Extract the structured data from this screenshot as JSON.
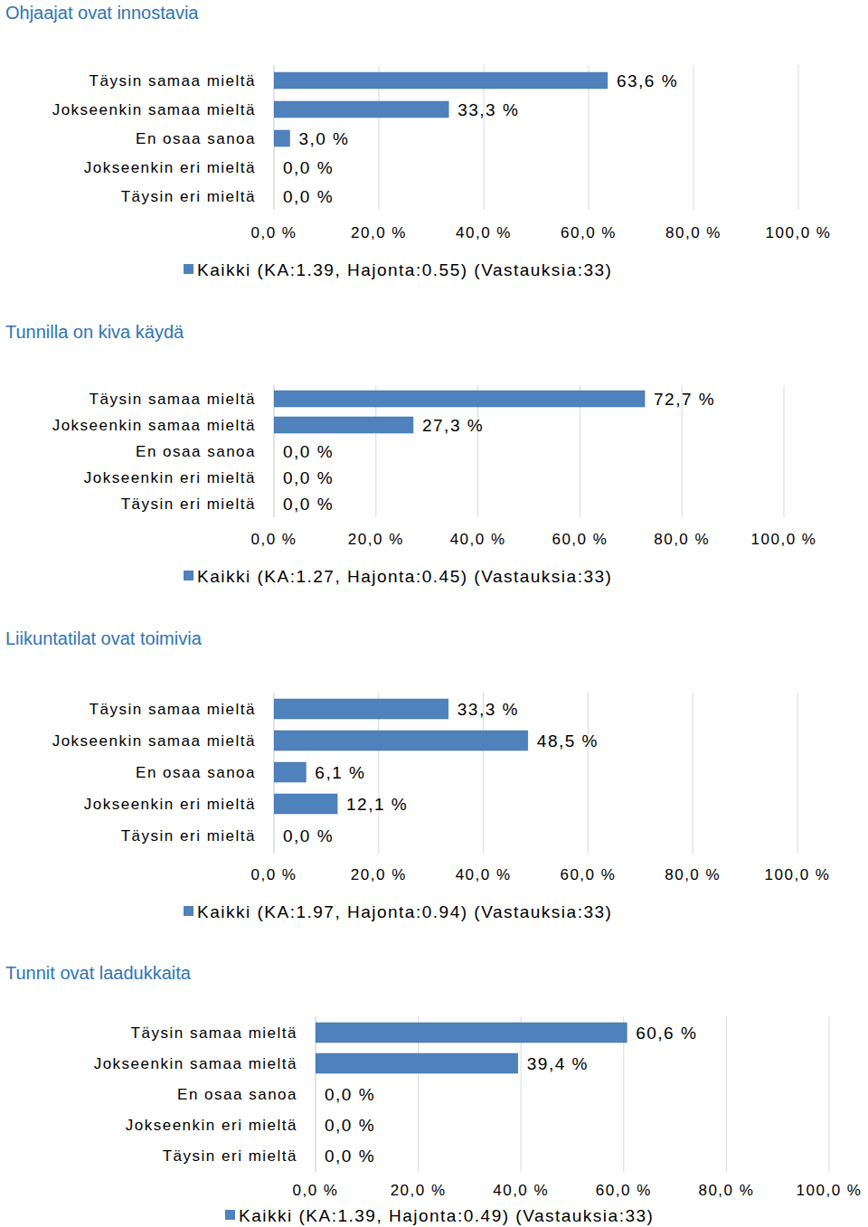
{
  "chart_data": [
    {
      "type": "bar",
      "orientation": "horizontal",
      "title": "Ohjaajat ovat innostavia",
      "categories": [
        "Täysin samaa mieltä",
        "Jokseenkin samaa mieltä",
        "En osaa sanoa",
        "Jokseenkin eri mieltä",
        "Täysin eri mieltä"
      ],
      "series": [
        {
          "name": "Kaikki (KA:1.39, Hajonta:0.55) (Vastauksia:33)",
          "color": "#4f81bd",
          "values": [
            63.6,
            33.3,
            3.0,
            0.0,
            0.0
          ],
          "value_labels": [
            "63,6 %",
            "33,3 %",
            "3,0 %",
            "0,0 %",
            "0,0 %"
          ]
        }
      ],
      "xlim": [
        0,
        100
      ],
      "xticks": [
        {
          "value": 0,
          "label": "0,0 %"
        },
        {
          "value": 20,
          "label": "20,0 %"
        },
        {
          "value": 40,
          "label": "40,0 %"
        },
        {
          "value": 60,
          "label": "60,0 %"
        },
        {
          "value": 80,
          "label": "80,0 %"
        },
        {
          "value": 100,
          "label": "100,0 %"
        }
      ],
      "grid": true,
      "legend": "bottom",
      "data_labels": true
    },
    {
      "type": "bar",
      "orientation": "horizontal",
      "title": "Tunnilla on kiva käydä",
      "categories": [
        "Täysin samaa mieltä",
        "Jokseenkin samaa mieltä",
        "En osaa sanoa",
        "Jokseenkin eri mieltä",
        "Täysin eri mieltä"
      ],
      "series": [
        {
          "name": "Kaikki (KA:1.27, Hajonta:0.45) (Vastauksia:33)",
          "color": "#4f81bd",
          "values": [
            72.7,
            27.3,
            0.0,
            0.0,
            0.0
          ],
          "value_labels": [
            "72,7 %",
            "27,3 %",
            "0,0 %",
            "0,0 %",
            "0,0 %"
          ]
        }
      ],
      "xlim": [
        0,
        100
      ],
      "xticks": [
        {
          "value": 0,
          "label": "0,0 %"
        },
        {
          "value": 20,
          "label": "20,0 %"
        },
        {
          "value": 40,
          "label": "40,0 %"
        },
        {
          "value": 60,
          "label": "60,0 %"
        },
        {
          "value": 80,
          "label": "80,0 %"
        },
        {
          "value": 100,
          "label": "100,0 %"
        }
      ],
      "grid": true,
      "legend": "bottom",
      "data_labels": true
    },
    {
      "type": "bar",
      "orientation": "horizontal",
      "title": "Liikuntatilat ovat toimivia",
      "categories": [
        "Täysin samaa mieltä",
        "Jokseenkin samaa mieltä",
        "En osaa sanoa",
        "Jokseenkin eri mieltä",
        "Täysin eri mieltä"
      ],
      "series": [
        {
          "name": "Kaikki (KA:1.97, Hajonta:0.94) (Vastauksia:33)",
          "color": "#4f81bd",
          "values": [
            33.3,
            48.5,
            6.1,
            12.1,
            0.0
          ],
          "value_labels": [
            "33,3 %",
            "48,5 %",
            "6,1 %",
            "12,1 %",
            "0,0 %"
          ]
        }
      ],
      "xlim": [
        0,
        100
      ],
      "xticks": [
        {
          "value": 0,
          "label": "0,0 %"
        },
        {
          "value": 20,
          "label": "20,0 %"
        },
        {
          "value": 40,
          "label": "40,0 %"
        },
        {
          "value": 60,
          "label": "60,0 %"
        },
        {
          "value": 80,
          "label": "80,0 %"
        },
        {
          "value": 100,
          "label": "100,0 %"
        }
      ],
      "grid": true,
      "legend": "bottom",
      "data_labels": true
    },
    {
      "type": "bar",
      "orientation": "horizontal",
      "title": "Tunnit ovat laadukkaita",
      "categories": [
        "Täysin samaa mieltä",
        "Jokseenkin samaa mieltä",
        "En osaa sanoa",
        "Jokseenkin eri mieltä",
        "Täysin eri mieltä"
      ],
      "series": [
        {
          "name": "Kaikki (KA:1.39, Hajonta:0.49) (Vastauksia:33)",
          "color": "#4f81bd",
          "values": [
            60.6,
            39.4,
            0.0,
            0.0,
            0.0
          ],
          "value_labels": [
            "60,6 %",
            "39,4 %",
            "0,0 %",
            "0,0 %",
            "0,0 %"
          ]
        }
      ],
      "xlim": [
        0,
        100
      ],
      "xticks": [
        {
          "value": 0,
          "label": "0,0 %"
        },
        {
          "value": 20,
          "label": "20,0 %"
        },
        {
          "value": 40,
          "label": "40,0 %"
        },
        {
          "value": 60,
          "label": "60,0 %"
        },
        {
          "value": 80,
          "label": "80,0 %"
        },
        {
          "value": 100,
          "label": "100,0 %"
        }
      ],
      "grid": true,
      "legend": "bottom",
      "data_labels": true
    }
  ]
}
